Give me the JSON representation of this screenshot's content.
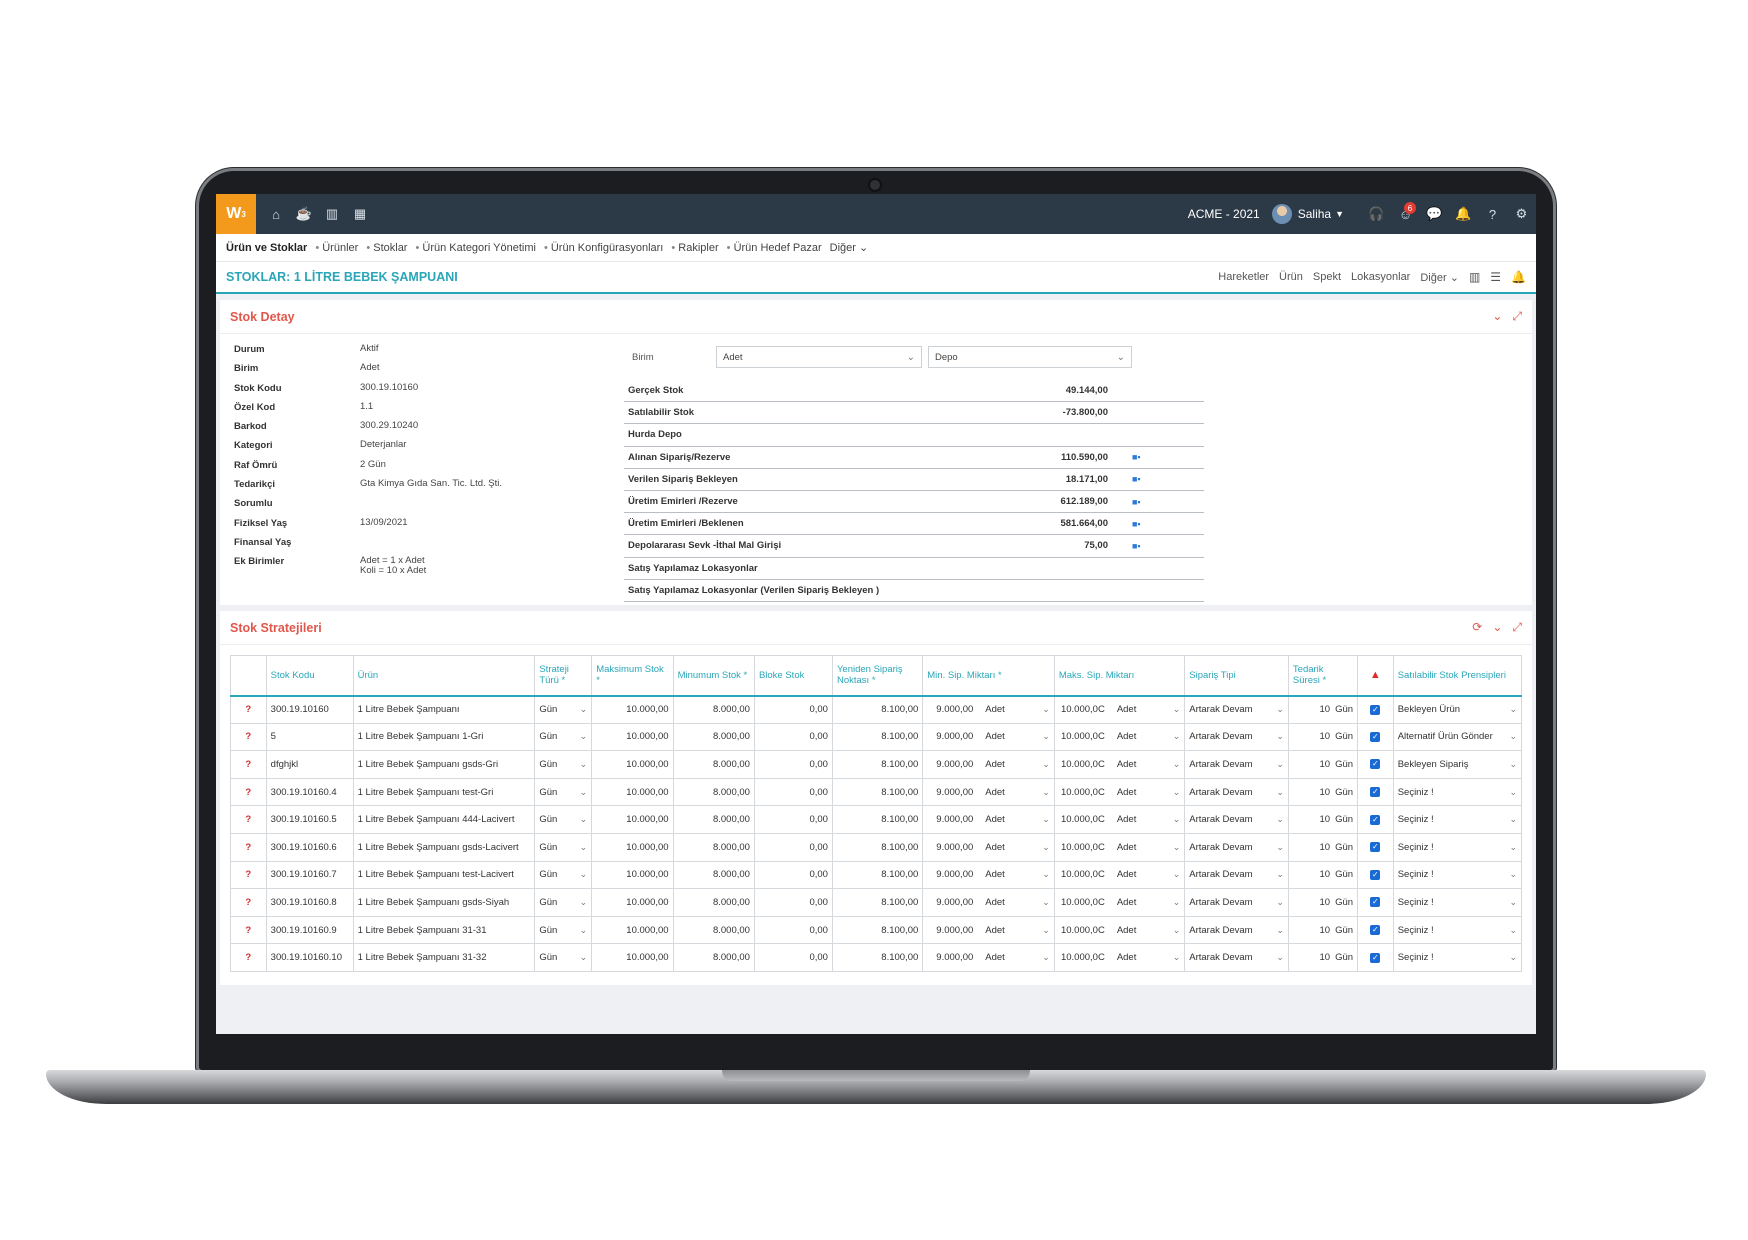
{
  "topbar": {
    "logo": "W",
    "logo_sup": "3",
    "left_icons": [
      "home-icon",
      "coffee-icon",
      "bar-chart-icon",
      "calendar-icon"
    ],
    "company": "ACME - 2021",
    "user": "Saliha",
    "notification_count": "6",
    "right_icons": [
      "headset-icon",
      "smiley-icon",
      "chat-icon",
      "bell-icon",
      "help-icon",
      "gear-icon"
    ]
  },
  "breadcrumb": {
    "items": [
      "Ürün ve Stoklar",
      "Ürünler",
      "Stoklar",
      "Ürün Kategori Yönetimi",
      "Ürün Konfigürasyonları",
      "Rakipler",
      "Ürün Hedef Pazar"
    ],
    "more": "Diğer"
  },
  "titlebar": {
    "title": "STOKLAR: 1 LİTRE BEBEK ŞAMPUANI",
    "actions": [
      "Hareketler",
      "Ürün",
      "Spekt",
      "Lokasyonlar"
    ],
    "more": "Diğer"
  },
  "stok_detay": {
    "title": "Stok Detay",
    "fields": [
      {
        "key": "Durum",
        "value": "Aktif"
      },
      {
        "key": "Birim",
        "value": "Adet"
      },
      {
        "key": "Stok Kodu",
        "value": "300.19.10160"
      },
      {
        "key": "Özel Kod",
        "value": "1.1"
      },
      {
        "key": "Barkod",
        "value": "300.29.10240"
      },
      {
        "key": "Kategori",
        "value": "Deterjanlar"
      },
      {
        "key": "Raf Ömrü",
        "value": "2 Gün"
      },
      {
        "key": "Tedarikçi",
        "value": "Gta Kimya Gıda San. Tic. Ltd. Şti."
      },
      {
        "key": "Sorumlu",
        "value": ""
      },
      {
        "key": "Fiziksel Yaş",
        "value": "13/09/2021"
      },
      {
        "key": "Finansal Yaş",
        "value": ""
      },
      {
        "key": "Ek Birimler",
        "value": "Adet = 1 x Adet\nKoli = 10 x Adet"
      }
    ],
    "birim_label": "Birim",
    "birim_value": "Adet",
    "depo_value": "Depo",
    "stock_rows": [
      {
        "name": "Gerçek Stok",
        "value": "49.144,00",
        "truck": false
      },
      {
        "name": "Satılabilir Stok",
        "value": "-73.800,00",
        "truck": false
      },
      {
        "name": "Hurda Depo",
        "value": "",
        "truck": false
      },
      {
        "name": "Alınan Sipariş/Rezerve",
        "value": "110.590,00",
        "truck": true
      },
      {
        "name": "Verilen Sipariş Bekleyen",
        "value": "18.171,00",
        "truck": true
      },
      {
        "name": "Üretim Emirleri /Rezerve",
        "value": "612.189,00",
        "truck": true
      },
      {
        "name": "Üretim Emirleri /Beklenen",
        "value": "581.664,00",
        "truck": true
      },
      {
        "name": "Depolararası Sevk -İthal Mal Girişi",
        "value": "75,00",
        "truck": true
      },
      {
        "name": "Satış Yapılamaz Lokasyonlar",
        "value": "",
        "truck": false
      },
      {
        "name": "Satış Yapılamaz Lokasyonlar (Verilen Sipariş Bekleyen )",
        "value": "",
        "truck": false
      }
    ]
  },
  "stok_stratejileri": {
    "title": "Stok Stratejileri",
    "headers": [
      "",
      "Stok Kodu",
      "Ürün",
      "Strateji Türü *",
      "Maksimum Stok *",
      "Minumum Stok *",
      "Bloke Stok",
      "Yeniden Sipariş Noktası *",
      "Min. Sip. Miktarı *",
      "Maks. Sip. Miktarı",
      "Sipariş Tipi",
      "Tedarik Süresi *",
      "!",
      "Satılabilir Stok Prensipleri"
    ],
    "rows": [
      {
        "code": "300.19.10160",
        "product": "1 Litre Bebek Şampuanı",
        "strategy": "Gün",
        "max": "10.000,00",
        "min": "8.000,00",
        "blocked": "0,00",
        "reorder": "8.100,00",
        "min_qty": "9.000,00",
        "min_unit": "Adet",
        "max_qty": "10.000,0C",
        "max_unit": "Adet",
        "order_type": "Artarak Devam",
        "lead": "10",
        "lead_unit": "Gün",
        "principle": "Bekleyen Ürün"
      },
      {
        "code": "5",
        "product": "1 Litre Bebek Şampuanı 1-Gri",
        "strategy": "Gün",
        "max": "10.000,00",
        "min": "8.000,00",
        "blocked": "0,00",
        "reorder": "8.100,00",
        "min_qty": "9.000,00",
        "min_unit": "Adet",
        "max_qty": "10.000,0C",
        "max_unit": "Adet",
        "order_type": "Artarak Devam",
        "lead": "10",
        "lead_unit": "Gün",
        "principle": "Alternatif Ürün Gönder"
      },
      {
        "code": "dfghjkl",
        "product": "1 Litre Bebek Şampuanı gsds-Gri",
        "strategy": "Gün",
        "max": "10.000,00",
        "min": "8.000,00",
        "blocked": "0,00",
        "reorder": "8.100,00",
        "min_qty": "9.000,00",
        "min_unit": "Adet",
        "max_qty": "10.000,0C",
        "max_unit": "Adet",
        "order_type": "Artarak Devam",
        "lead": "10",
        "lead_unit": "Gün",
        "principle": "Bekleyen Sipariş"
      },
      {
        "code": "300.19.10160.4",
        "product": "1 Litre Bebek Şampuanı test-Gri",
        "strategy": "Gün",
        "max": "10.000,00",
        "min": "8.000,00",
        "blocked": "0,00",
        "reorder": "8.100,00",
        "min_qty": "9.000,00",
        "min_unit": "Adet",
        "max_qty": "10.000,0C",
        "max_unit": "Adet",
        "order_type": "Artarak Devam",
        "lead": "10",
        "lead_unit": "Gün",
        "principle": "Seçiniz !"
      },
      {
        "code": "300.19.10160.5",
        "product": "1 Litre Bebek Şampuanı 444-Lacivert",
        "strategy": "Gün",
        "max": "10.000,00",
        "min": "8.000,00",
        "blocked": "0,00",
        "reorder": "8.100,00",
        "min_qty": "9.000,00",
        "min_unit": "Adet",
        "max_qty": "10.000,0C",
        "max_unit": "Adet",
        "order_type": "Artarak Devam",
        "lead": "10",
        "lead_unit": "Gün",
        "principle": "Seçiniz !"
      },
      {
        "code": "300.19.10160.6",
        "product": "1 Litre Bebek Şampuanı gsds-Lacivert",
        "strategy": "Gün",
        "max": "10.000,00",
        "min": "8.000,00",
        "blocked": "0,00",
        "reorder": "8.100,00",
        "min_qty": "9.000,00",
        "min_unit": "Adet",
        "max_qty": "10.000,0C",
        "max_unit": "Adet",
        "order_type": "Artarak Devam",
        "lead": "10",
        "lead_unit": "Gün",
        "principle": "Seçiniz !"
      },
      {
        "code": "300.19.10160.7",
        "product": "1 Litre Bebek Şampuanı test-Lacivert",
        "strategy": "Gün",
        "max": "10.000,00",
        "min": "8.000,00",
        "blocked": "0,00",
        "reorder": "8.100,00",
        "min_qty": "9.000,00",
        "min_unit": "Adet",
        "max_qty": "10.000,0C",
        "max_unit": "Adet",
        "order_type": "Artarak Devam",
        "lead": "10",
        "lead_unit": "Gün",
        "principle": "Seçiniz !"
      },
      {
        "code": "300.19.10160.8",
        "product": "1 Litre Bebek Şampuanı gsds-Siyah",
        "strategy": "Gün",
        "max": "10.000,00",
        "min": "8.000,00",
        "blocked": "0,00",
        "reorder": "8.100,00",
        "min_qty": "9.000,00",
        "min_unit": "Adet",
        "max_qty": "10.000,0C",
        "max_unit": "Adet",
        "order_type": "Artarak Devam",
        "lead": "10",
        "lead_unit": "Gün",
        "principle": "Seçiniz !"
      },
      {
        "code": "300.19.10160.9",
        "product": "1 Litre Bebek Şampuanı 31-31",
        "strategy": "Gün",
        "max": "10.000,00",
        "min": "8.000,00",
        "blocked": "0,00",
        "reorder": "8.100,00",
        "min_qty": "9.000,00",
        "min_unit": "Adet",
        "max_qty": "10.000,0C",
        "max_unit": "Adet",
        "order_type": "Artarak Devam",
        "lead": "10",
        "lead_unit": "Gün",
        "principle": "Seçiniz !"
      },
      {
        "code": "300.19.10160.10",
        "product": "1 Litre Bebek Şampuanı 31-32",
        "strategy": "Gün",
        "max": "10.000,00",
        "min": "8.000,00",
        "blocked": "0,00",
        "reorder": "8.100,00",
        "min_qty": "9.000,00",
        "min_unit": "Adet",
        "max_qty": "10.000,0C",
        "max_unit": "Adet",
        "order_type": "Artarak Devam",
        "lead": "10",
        "lead_unit": "Gün",
        "principle": "Seçiniz !"
      }
    ]
  },
  "colors": {
    "accent": "#2aa6b9",
    "panel_title": "#e2574c",
    "topbar": "#2c3a47",
    "logo": "#f39a1c"
  }
}
